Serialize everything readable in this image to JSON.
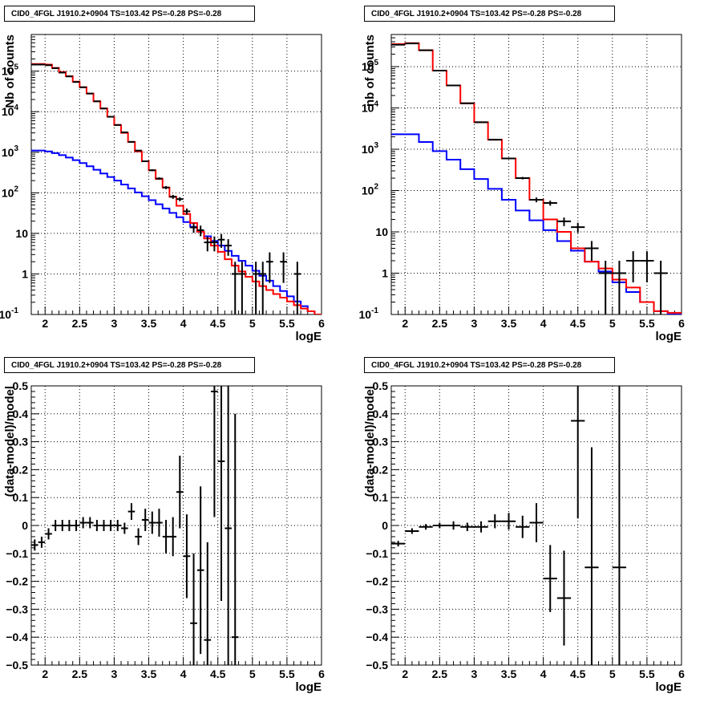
{
  "panels": [
    {
      "title": "CID0_4FGL J1910.2+0904 TS=103.42 PS=-0.28 PS=-0.28",
      "xlabel": "logE",
      "ylabel": "Nb of counts"
    },
    {
      "title": "CID0_4FGL J1910.2+0904 TS=103.42 PS=-0.28 PS=-0.28",
      "xlabel": "logE",
      "ylabel": "nb of counts"
    },
    {
      "title": "CID0_4FGL J1910.2+0904 TS=103.42 PS=-0.28 PS=-0.28",
      "xlabel": "logE",
      "ylabel": "(data-model)/model"
    },
    {
      "title": "CID0_4FGL J1910.2+0904 TS=103.42 PS=-0.28 PS=-0.28",
      "xlabel": "logE",
      "ylabel": "(data-model)/model"
    }
  ],
  "chart_data": [
    {
      "type": "line",
      "title": "CID0_4FGL J1910.2+0904 TS=103.42 PS=-0.28 PS=-0.28",
      "xlabel": "logE",
      "ylabel": "Nb of counts",
      "xlim": [
        1.8,
        6.0
      ],
      "ylim": [
        0.1,
        800000
      ],
      "yscale": "log",
      "grid": true,
      "x_ticks": [
        "2",
        "2.5",
        "3",
        "3.5",
        "4",
        "4.5",
        "5",
        "5.5",
        "6"
      ],
      "y_ticks": [
        "10^-1",
        "1",
        "10",
        "10^2",
        "10^3",
        "10^4",
        "10^5"
      ],
      "series_colors": {
        "model_total": "#ff0000",
        "model_component": "#0000ff",
        "data": "#000000"
      },
      "model_total": {
        "edges": [
          1.8,
          1.9,
          2.0,
          2.1,
          2.2,
          2.3,
          2.4,
          2.5,
          2.6,
          2.7,
          2.8,
          2.9,
          3.0,
          3.1,
          3.2,
          3.3,
          3.4,
          3.5,
          3.6,
          3.7,
          3.8,
          3.9,
          4.0,
          4.1,
          4.2,
          4.3,
          4.4,
          4.5,
          4.6,
          4.7,
          4.8,
          4.9,
          5.0,
          5.1,
          5.2,
          5.3,
          5.4,
          5.5,
          5.6,
          5.7,
          5.8,
          5.9,
          6.0
        ],
        "values": [
          150000,
          150000,
          145000,
          120000,
          95000,
          75000,
          55000,
          40000,
          28000,
          18000,
          12000,
          7500,
          4700,
          3000,
          1800,
          1050,
          600,
          360,
          220,
          135,
          80,
          48,
          30,
          18,
          11,
          7.5,
          5,
          3.5,
          2.3,
          1.6,
          1.15,
          0.85,
          0.65,
          0.5,
          0.4,
          0.32,
          0.26,
          0.21,
          0.17,
          0.14,
          0.12,
          0.1
        ]
      },
      "model_component": {
        "edges": [
          1.8,
          1.9,
          2.0,
          2.1,
          2.2,
          2.3,
          2.4,
          2.5,
          2.6,
          2.7,
          2.8,
          2.9,
          3.0,
          3.1,
          3.2,
          3.3,
          3.4,
          3.5,
          3.6,
          3.7,
          3.8,
          3.9,
          4.0,
          4.1,
          4.2,
          4.3,
          4.4,
          4.5,
          4.6,
          4.7,
          4.8,
          4.9,
          5.0,
          5.1,
          5.2,
          5.3,
          5.4,
          5.5,
          5.6,
          5.7,
          5.8,
          5.9,
          6.0
        ],
        "values": [
          1100,
          1100,
          1050,
          950,
          850,
          740,
          640,
          540,
          450,
          370,
          300,
          245,
          200,
          160,
          128,
          102,
          82,
          66,
          52,
          41,
          32,
          25,
          19,
          14.5,
          11,
          8.5,
          6.5,
          5,
          3.7,
          2.8,
          2.1,
          1.6,
          1.2,
          0.9,
          0.68,
          0.5,
          0.38,
          0.28,
          0.21,
          0.16,
          0.12,
          0.1
        ]
      },
      "data": {
        "x": [
          1.85,
          1.95,
          2.05,
          2.15,
          2.25,
          2.35,
          2.45,
          2.55,
          2.65,
          2.75,
          2.85,
          2.95,
          3.05,
          3.15,
          3.25,
          3.35,
          3.45,
          3.55,
          3.65,
          3.75,
          3.85,
          3.95,
          4.05,
          4.15,
          4.25,
          4.35,
          4.45,
          4.55,
          4.65,
          4.75,
          4.85,
          5.05,
          5.15,
          5.25,
          5.45,
          5.65
        ],
        "y": [
          145000,
          145000,
          140000,
          118000,
          92000,
          74000,
          54000,
          40000,
          28000,
          18000,
          12000,
          7500,
          4700,
          3100,
          1800,
          1100,
          600,
          360,
          225,
          135,
          80,
          70,
          35,
          14,
          12,
          6,
          6,
          7,
          5,
          1,
          1,
          1,
          1,
          2,
          2,
          1
        ],
        "yerr": [
          400,
          400,
          400,
          350,
          300,
          280,
          230,
          200,
          170,
          135,
          110,
          87,
          69,
          56,
          42,
          33,
          25,
          19,
          15,
          12,
          9,
          8,
          6,
          3.7,
          3.5,
          2.4,
          2.4,
          2.6,
          2.2,
          1,
          1,
          1,
          1,
          1.4,
          1.4,
          1
        ]
      }
    },
    {
      "type": "line",
      "title": "CID0_4FGL J1910.2+0904 TS=103.42 PS=-0.28 PS=-0.28",
      "xlabel": "logE",
      "ylabel": "nb of counts",
      "xlim": [
        1.8,
        6.0
      ],
      "ylim": [
        0.1,
        600000
      ],
      "yscale": "log",
      "grid": true,
      "x_ticks": [
        "2",
        "2.5",
        "3",
        "3.5",
        "4",
        "4.5",
        "5",
        "5.5",
        "6"
      ],
      "y_ticks": [
        "10^-1",
        "1",
        "10",
        "10^2",
        "10^3",
        "10^4",
        "10^5"
      ],
      "series_colors": {
        "model_total": "#ff0000",
        "model_component": "#0000ff",
        "data": "#000000"
      },
      "model_total": {
        "edges": [
          1.8,
          2.0,
          2.2,
          2.4,
          2.6,
          2.8,
          3.0,
          3.2,
          3.4,
          3.6,
          3.8,
          4.0,
          4.2,
          4.4,
          4.6,
          4.8,
          5.0,
          5.2,
          5.4,
          5.6,
          5.8,
          6.0
        ],
        "values": [
          350000,
          370000,
          250000,
          80000,
          35000,
          13000,
          4500,
          1700,
          600,
          200,
          60,
          20,
          10,
          4,
          1.9,
          1.3,
          0.7,
          0.45,
          0.2,
          0.12,
          0.11
        ]
      },
      "model_component": {
        "edges": [
          1.8,
          2.0,
          2.2,
          2.4,
          2.6,
          2.8,
          3.0,
          3.2,
          3.4,
          3.6,
          3.8,
          4.0,
          4.2,
          4.4,
          4.6,
          4.8,
          5.0,
          5.2,
          5.4,
          5.6,
          5.8,
          6.0
        ],
        "values": [
          2300,
          2300,
          1500,
          900,
          560,
          330,
          190,
          110,
          60,
          33,
          19,
          11,
          6,
          3.5,
          1.9,
          1.1,
          0.6,
          0.35,
          0.2,
          0.12,
          0.1
        ]
      },
      "data": {
        "x": [
          1.9,
          2.1,
          2.3,
          2.5,
          2.7,
          2.9,
          3.1,
          3.3,
          3.5,
          3.7,
          3.9,
          4.1,
          4.3,
          4.5,
          4.7,
          4.9,
          5.1,
          5.3,
          5.5,
          5.7
        ],
        "y": [
          340000,
          365000,
          250000,
          80000,
          35000,
          13000,
          4500,
          1700,
          600,
          200,
          60,
          50,
          18,
          13,
          4,
          1,
          1,
          2,
          2,
          1
        ],
        "yerr": [
          580,
          600,
          500,
          280,
          190,
          115,
          67,
          41,
          25,
          14,
          8,
          7,
          4.2,
          3.6,
          2,
          1,
          1,
          1.4,
          1.4,
          1
        ]
      }
    },
    {
      "type": "scatter",
      "title": "CID0_4FGL J1910.2+0904 TS=103.42 PS=-0.28 PS=-0.28",
      "xlabel": "logE",
      "ylabel": "(data-model)/model",
      "xlim": [
        1.8,
        6.0
      ],
      "ylim": [
        -0.5,
        0.5
      ],
      "grid": true,
      "x_ticks": [
        "2",
        "2.5",
        "3",
        "3.5",
        "4",
        "4.5",
        "5",
        "5.5",
        "6"
      ],
      "y_ticks": [
        "-0.5",
        "-0.4",
        "-0.3",
        "-0.2",
        "-0.1",
        "0",
        "0.1",
        "0.2",
        "0.3",
        "0.4",
        "0.5"
      ],
      "data": {
        "x": [
          1.85,
          1.95,
          2.05,
          2.15,
          2.25,
          2.35,
          2.45,
          2.55,
          2.65,
          2.75,
          2.85,
          2.95,
          3.05,
          3.15,
          3.25,
          3.35,
          3.45,
          3.55,
          3.65,
          3.75,
          3.85,
          3.95,
          4.05,
          4.15,
          4.25,
          4.35,
          4.45,
          4.55,
          4.65,
          4.75
        ],
        "y": [
          -0.07,
          -0.06,
          -0.03,
          0.0,
          0.0,
          0.0,
          0.0,
          0.01,
          0.01,
          0.0,
          0.0,
          0.0,
          0.0,
          -0.01,
          0.05,
          -0.04,
          0.02,
          0.01,
          0.01,
          -0.04,
          -0.04,
          0.12,
          -0.11,
          -0.35,
          -0.16,
          -0.41,
          0.48,
          0.23,
          -0.01,
          -0.4
        ],
        "yerr": [
          0.02,
          0.02,
          0.02,
          0.02,
          0.02,
          0.02,
          0.02,
          0.02,
          0.02,
          0.02,
          0.02,
          0.02,
          0.02,
          0.02,
          0.03,
          0.03,
          0.04,
          0.04,
          0.05,
          0.06,
          0.07,
          0.13,
          0.15,
          0.25,
          0.3,
          0.35,
          0.45,
          0.5,
          0.6,
          0.8
        ],
        "xerr": 0.05
      }
    },
    {
      "type": "scatter",
      "title": "CID0_4FGL J1910.2+0904 TS=103.42 PS=-0.28 PS=-0.28",
      "xlabel": "logE",
      "ylabel": "(data-model)/model",
      "xlim": [
        1.8,
        6.0
      ],
      "ylim": [
        -0.5,
        0.5
      ],
      "grid": true,
      "x_ticks": [
        "2",
        "2.5",
        "3",
        "3.5",
        "4",
        "4.5",
        "5",
        "5.5",
        "6"
      ],
      "y_ticks": [
        "-0.5",
        "-0.4",
        "-0.3",
        "-0.2",
        "-0.1",
        "0",
        "0.1",
        "0.2",
        "0.3",
        "0.4",
        "0.5"
      ],
      "data": {
        "x": [
          1.9,
          2.1,
          2.3,
          2.5,
          2.7,
          2.9,
          3.1,
          3.3,
          3.5,
          3.7,
          3.9,
          4.1,
          4.3,
          4.5,
          4.7,
          5.1
        ],
        "y": [
          -0.065,
          -0.02,
          -0.005,
          0.0,
          0.0,
          -0.005,
          -0.005,
          0.015,
          0.015,
          -0.005,
          0.01,
          -0.19,
          -0.26,
          0.375,
          -0.15,
          -0.15
        ],
        "yerr": [
          0.01,
          0.01,
          0.01,
          0.01,
          0.015,
          0.015,
          0.02,
          0.025,
          0.03,
          0.04,
          0.07,
          0.12,
          0.17,
          0.35,
          0.43,
          0.7
        ],
        "xerr": 0.1
      }
    }
  ]
}
